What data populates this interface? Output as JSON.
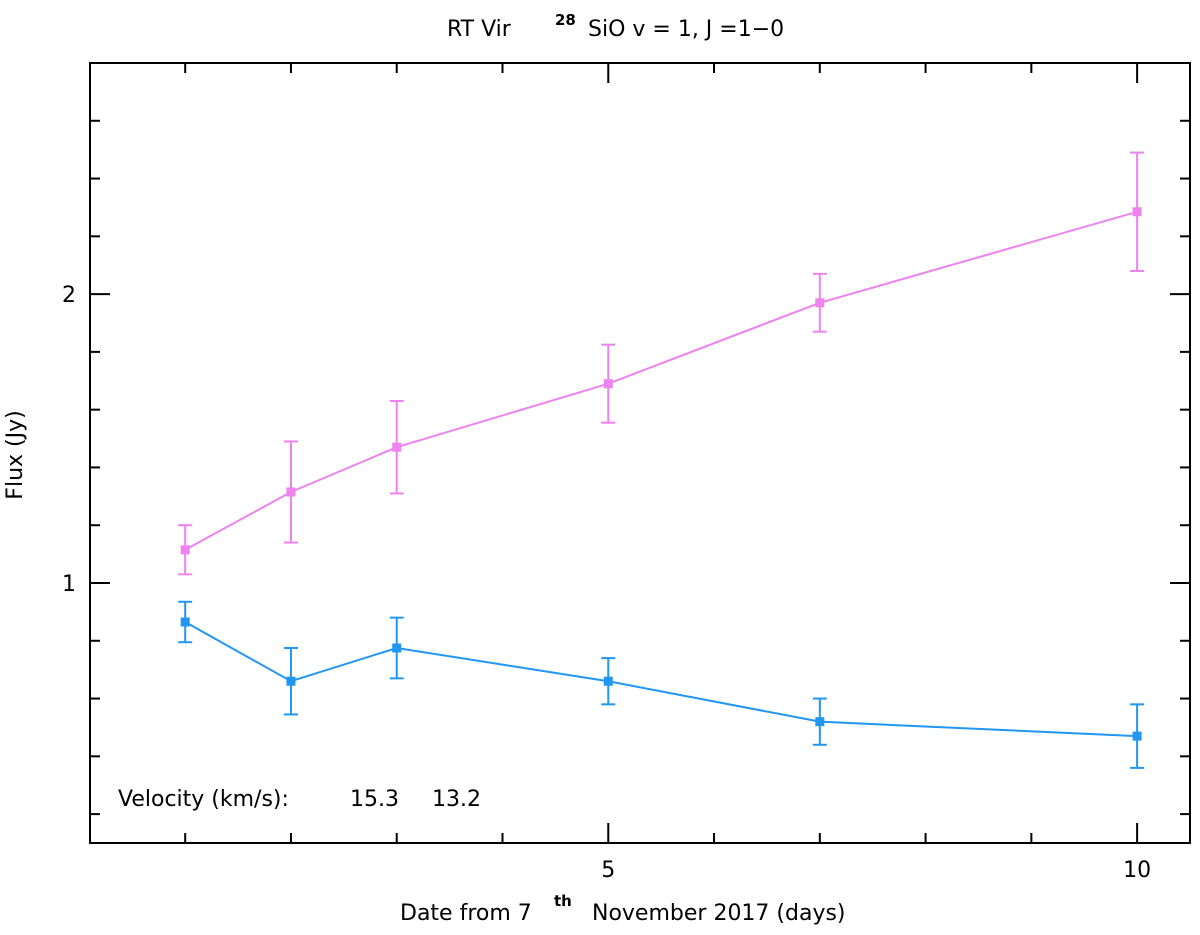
{
  "chart_data": {
    "type": "line",
    "title": {
      "prefix": "RT Vir",
      "superscript": "28",
      "suffix": "SiO v = 1, J =1−0"
    },
    "xlabel": {
      "prefix": "Date from 7",
      "superscript": "th",
      "suffix": "November 2017 (days)"
    },
    "ylabel": "Flux (Jy)",
    "xlim": [
      0.1,
      10.5
    ],
    "ylim": [
      0.1,
      2.8
    ],
    "x_major_ticks": [
      5,
      10
    ],
    "x_tick_labels": [
      "5",
      "10"
    ],
    "x_minor_step": 1,
    "y_major_ticks": [
      1,
      2
    ],
    "y_tick_labels": [
      "1",
      "2"
    ],
    "y_minor_step": 0.2,
    "legend": {
      "label": "Velocity (km/s):",
      "position": "bottom-left"
    },
    "series": [
      {
        "name": "15.3",
        "color": "#2196F3",
        "x": [
          1,
          2,
          3,
          5,
          7,
          10
        ],
        "y": [
          0.865,
          0.66,
          0.775,
          0.66,
          0.52,
          0.47
        ],
        "err": [
          0.07,
          0.115,
          0.105,
          0.08,
          0.08,
          0.11
        ]
      },
      {
        "name": "13.2",
        "color": "#EE82EE",
        "x": [
          1,
          2,
          3,
          5,
          7,
          10
        ],
        "y": [
          1.115,
          1.315,
          1.47,
          1.69,
          1.97,
          2.285
        ],
        "err": [
          0.085,
          0.175,
          0.16,
          0.135,
          0.1,
          0.205
        ]
      }
    ]
  }
}
